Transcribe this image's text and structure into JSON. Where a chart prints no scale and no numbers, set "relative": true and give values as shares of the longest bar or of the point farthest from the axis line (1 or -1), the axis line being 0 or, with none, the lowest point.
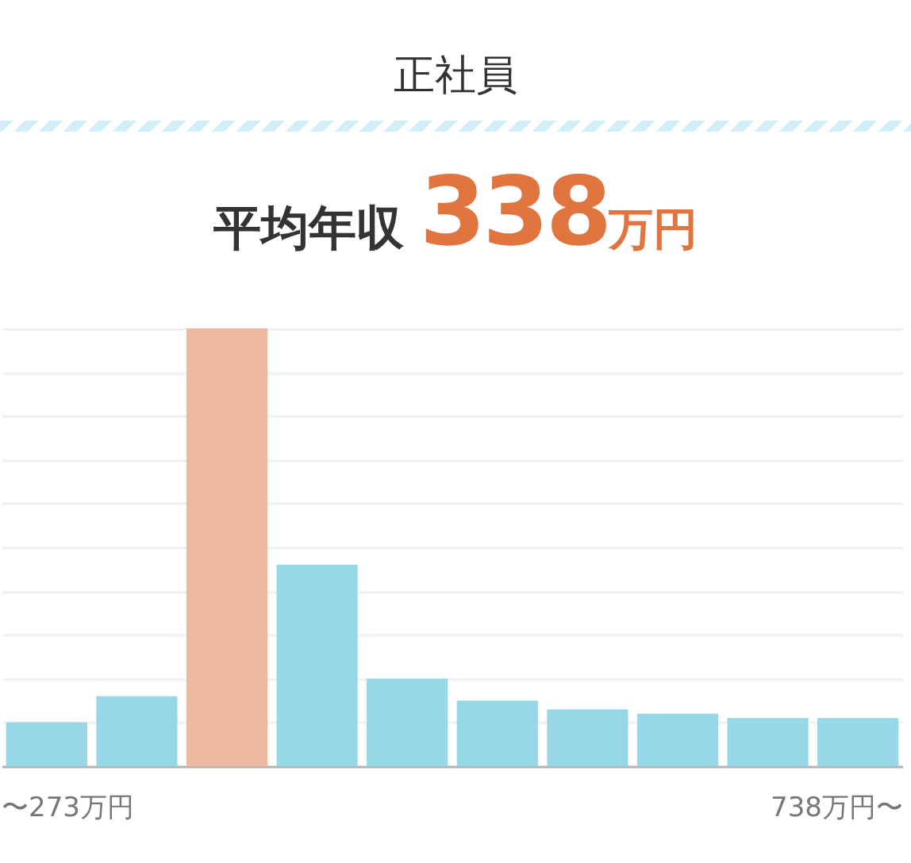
{
  "chart_data": {
    "type": "bar",
    "title": "正社員",
    "subtitle": "平均年収 338万円",
    "categories": [
      "〜273万円",
      null,
      null,
      null,
      null,
      null,
      null,
      null,
      null,
      "738万円〜"
    ],
    "values": [
      0.1,
      0.16,
      1,
      0.46,
      0.2,
      0.15,
      0.13,
      0.12,
      0.11,
      0.11
    ],
    "colors": [
      "#96d8e8",
      "#96d8e8",
      "#efb9a0",
      "#96d8e8",
      "#96d8e8",
      "#96d8e8",
      "#96d8e8",
      "#96d8e8",
      "#96d8e8",
      "#96d8e8"
    ],
    "relative": true,
    "grid": "y"
  }
}
